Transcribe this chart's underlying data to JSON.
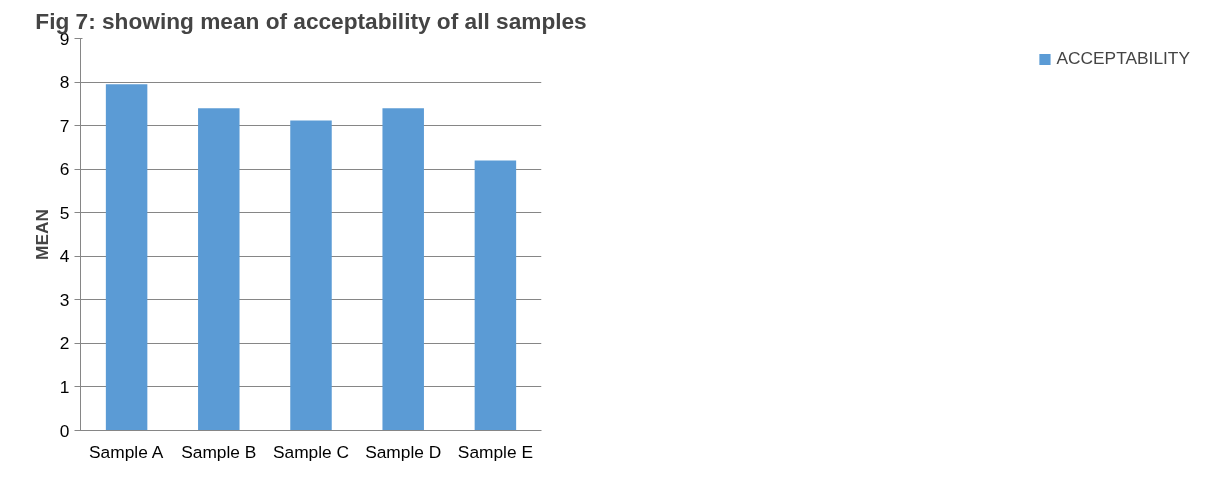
{
  "chart_data": {
    "type": "bar",
    "title": "Fig 7: showing mean of acceptability of all samples",
    "ylabel": "MEAN",
    "categories": [
      "Sample A",
      "Sample B",
      "Sample C",
      "Sample D",
      "Sample E"
    ],
    "series": [
      {
        "name": "ACCEPTABILITY",
        "color": "#5b9bd5",
        "values": [
          7.95,
          7.4,
          7.12,
          7.4,
          6.2
        ]
      }
    ],
    "ylim": [
      0,
      9
    ],
    "yticks": [
      0,
      1,
      2,
      3,
      4,
      5,
      6,
      7,
      8,
      9
    ],
    "grid": "y",
    "legend": "right"
  }
}
